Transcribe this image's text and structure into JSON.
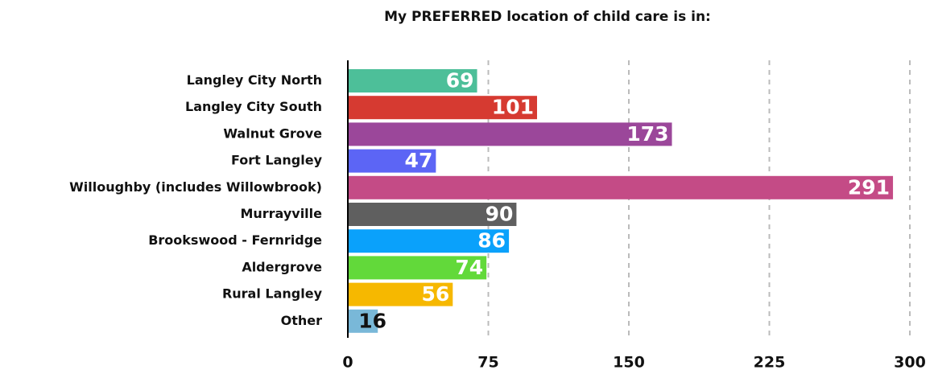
{
  "chart_data": {
    "type": "hbar",
    "title": "My PREFERRED location of child care is in:",
    "categories": [
      "Langley City North",
      "Langley City South",
      "Walnut Grove",
      "Fort Langley",
      "Willoughby (includes Willowbrook)",
      "Murrayville",
      "Brookswood - Fernridge",
      "Aldergrove",
      "Rural Langley",
      "Other"
    ],
    "values": [
      69,
      101,
      173,
      47,
      291,
      90,
      86,
      74,
      56,
      16
    ],
    "colors": [
      "#4dbf99",
      "#d63a31",
      "#9b479a",
      "#5c65f5",
      "#c44b86",
      "#5f5f5f",
      "#0aa1fb",
      "#62d93a",
      "#f6b800",
      "#79b8d8"
    ],
    "label_colors": [
      "#ffffff",
      "#ffffff",
      "#ffffff",
      "#ffffff",
      "#ffffff",
      "#ffffff",
      "#ffffff",
      "#ffffff",
      "#ffffff",
      "#111111"
    ],
    "xlim": [
      0,
      300
    ],
    "xticks": [
      0,
      75,
      150,
      225,
      300
    ],
    "grid": true
  }
}
